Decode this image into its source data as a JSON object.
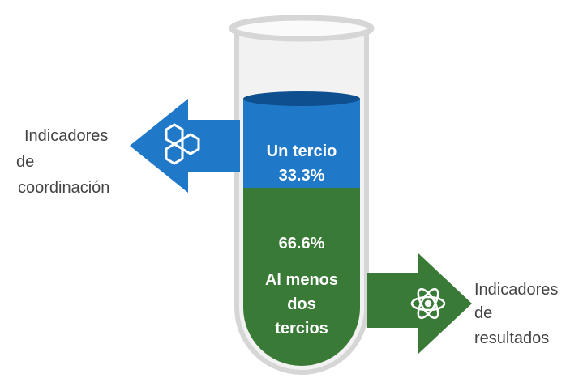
{
  "segments": [
    {
      "label": "Un tercio",
      "value": "33.3%"
    },
    {
      "value": "66.6%",
      "label_lines": [
        "Al menos",
        "dos",
        "tercios"
      ]
    }
  ],
  "left_callout": {
    "lines": [
      "Indicadores",
      "de",
      "coordinación"
    ]
  },
  "right_callout": {
    "lines": [
      "Indicadores",
      "de",
      "resultados"
    ]
  }
}
